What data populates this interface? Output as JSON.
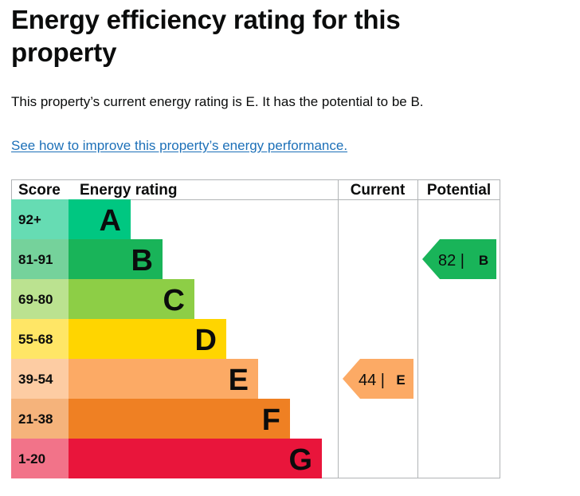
{
  "page": {
    "title": "Energy efficiency rating for this property",
    "summary": "This property’s current energy rating is E. It has the potential to be B.",
    "improve_link": "See how to improve this property’s energy performance."
  },
  "chart_data": {
    "type": "table",
    "columns": [
      "Score",
      "Energy rating",
      "Current",
      "Potential"
    ],
    "bands": [
      {
        "score": "92+",
        "letter": "A",
        "color": "#00c781",
        "score_bg": "#66dcb3"
      },
      {
        "score": "81-91",
        "letter": "B",
        "color": "#19b459",
        "score_bg": "#75d29b"
      },
      {
        "score": "69-80",
        "letter": "C",
        "color": "#8dce46",
        "score_bg": "#bbe290"
      },
      {
        "score": "55-68",
        "letter": "D",
        "color": "#ffd500",
        "score_bg": "#ffe666"
      },
      {
        "score": "39-54",
        "letter": "E",
        "color": "#fcaa65",
        "score_bg": "#fdcca3"
      },
      {
        "score": "21-38",
        "letter": "F",
        "color": "#ef8023",
        "score_bg": "#f5b37b"
      },
      {
        "score": "1-20",
        "letter": "G",
        "color": "#e9153b",
        "score_bg": "#f27389"
      }
    ],
    "current": {
      "value": 44,
      "letter": "E",
      "separator": "|",
      "color": "#fcaa65"
    },
    "potential": {
      "value": 82,
      "letter": "B",
      "separator": "|",
      "color": "#19b459"
    }
  }
}
